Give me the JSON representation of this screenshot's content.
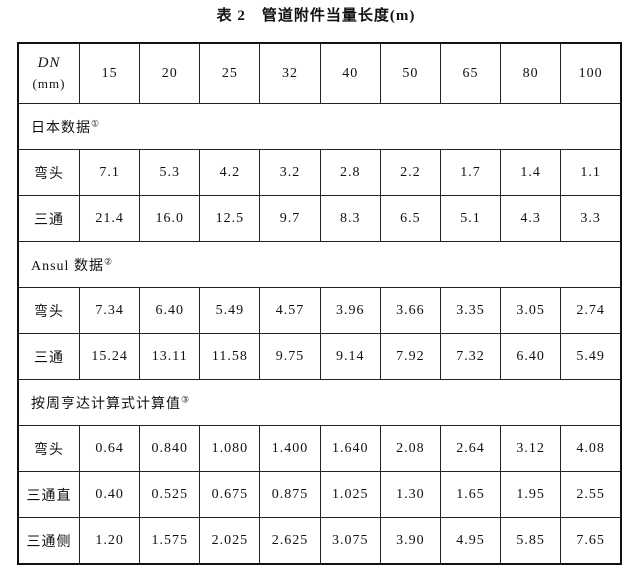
{
  "title": "表 2　管道附件当量长度(m)",
  "header": {
    "label": "DN",
    "unit": "(mm)",
    "columns": [
      "15",
      "20",
      "25",
      "32",
      "40",
      "50",
      "65",
      "80",
      "100"
    ]
  },
  "sections": [
    {
      "title": "日本数据",
      "note": "①",
      "rows": [
        {
          "label": "弯头",
          "values": [
            "7.1",
            "5.3",
            "4.2",
            "3.2",
            "2.8",
            "2.2",
            "1.7",
            "1.4",
            "1.1"
          ]
        },
        {
          "label": "三通",
          "values": [
            "21.4",
            "16.0",
            "12.5",
            "9.7",
            "8.3",
            "6.5",
            "5.1",
            "4.3",
            "3.3"
          ]
        }
      ]
    },
    {
      "title": "Ansul 数据",
      "note": "②",
      "rows": [
        {
          "label": "弯头",
          "values": [
            "7.34",
            "6.40",
            "5.49",
            "4.57",
            "3.96",
            "3.66",
            "3.35",
            "3.05",
            "2.74"
          ]
        },
        {
          "label": "三通",
          "values": [
            "15.24",
            "13.11",
            "11.58",
            "9.75",
            "9.14",
            "7.92",
            "7.32",
            "6.40",
            "5.49"
          ]
        }
      ]
    },
    {
      "title": "按周亨达计算式计算值",
      "note": "③",
      "rows": [
        {
          "label": "弯头",
          "values": [
            "0.64",
            "0.840",
            "1.080",
            "1.400",
            "1.640",
            "2.08",
            "2.64",
            "3.12",
            "4.08"
          ]
        },
        {
          "label": "三通直",
          "values": [
            "0.40",
            "0.525",
            "0.675",
            "0.875",
            "1.025",
            "1.30",
            "1.65",
            "1.95",
            "2.55"
          ]
        },
        {
          "label": "三通侧",
          "values": [
            "1.20",
            "1.575",
            "2.025",
            "2.625",
            "3.075",
            "3.90",
            "4.95",
            "5.85",
            "7.65"
          ]
        }
      ]
    }
  ]
}
